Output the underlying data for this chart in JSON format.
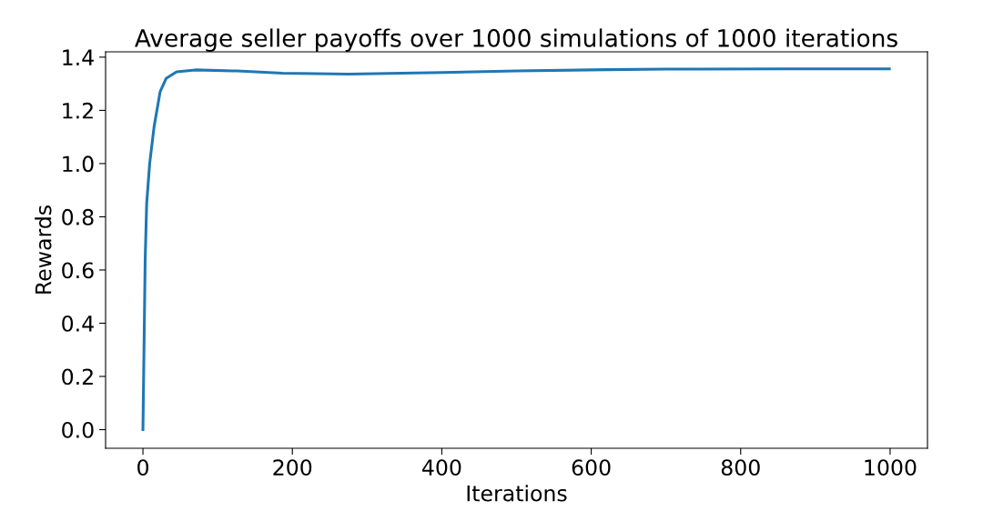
{
  "chart_data": {
    "type": "line",
    "title": "Average seller payoffs over 1000 simulations of 1000 iterations",
    "xlabel": "Iterations",
    "ylabel": "Rewards",
    "x": [
      0,
      3,
      5,
      9,
      15,
      23,
      31,
      45,
      70,
      126,
      187,
      275,
      400,
      500,
      621,
      700,
      850,
      999
    ],
    "series": [
      {
        "color": "#1f77b4",
        "values": [
          0,
          0.64,
          0.85,
          1.0,
          1.14,
          1.27,
          1.32,
          1.345,
          1.352,
          1.348,
          1.34,
          1.336,
          1.342,
          1.348,
          1.353,
          1.355,
          1.356,
          1.356
        ]
      }
    ],
    "xlim": [
      -50,
      1050
    ],
    "ylim": [
      -0.07,
      1.42
    ],
    "xticks": [
      0,
      200,
      400,
      600,
      800,
      1000
    ],
    "yticks": [
      {
        "value": 0,
        "label": "0.0"
      },
      0.2,
      0.4,
      0.6,
      0.8,
      {
        "value": 1,
        "label": "1.0"
      },
      1.2,
      1.4
    ],
    "grid": false
  }
}
